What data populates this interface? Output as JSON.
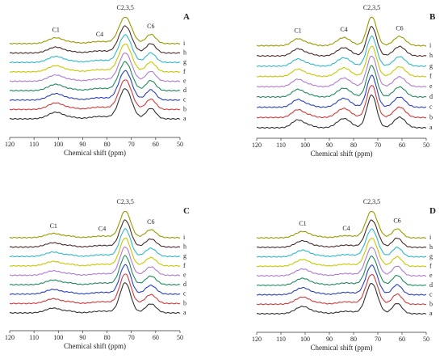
{
  "figure": {
    "colors": {
      "i": "#9a9a00",
      "h": "#4b2a2a",
      "g": "#30b8c8",
      "f": "#c8c800",
      "e": "#b07ad0",
      "d": "#1f8a5a",
      "c": "#2a3fc0",
      "b": "#d03a3a",
      "a": "#333333"
    }
  },
  "chart_data": [
    {
      "type": "line",
      "panel": "A",
      "xlabel": "Chemical shift (ppm)",
      "xlim": [
        120,
        50
      ],
      "x_reversed": true,
      "xticks": [
        "120",
        "110",
        "100",
        "90",
        "80",
        "70",
        "60",
        "50"
      ],
      "peak_labels": [
        {
          "text": "C1",
          "ppm": 101
        },
        {
          "text": "C4",
          "ppm": 83
        },
        {
          "text": "C2,3,5",
          "ppm": 72.5
        },
        {
          "text": "C6",
          "ppm": 62
        }
      ],
      "trace_labels": [
        "i",
        "h",
        "g",
        "f",
        "e",
        "d",
        "c",
        "b",
        "a"
      ],
      "peaks": [
        {
          "ppm": 101,
          "height": 0.22,
          "width": 3.2
        },
        {
          "ppm": 94,
          "height": 0.04,
          "width": 2.0
        },
        {
          "ppm": 83,
          "height": 0.08,
          "width": 4.0
        },
        {
          "ppm": 72.5,
          "height": 1.0,
          "width": 2.6
        },
        {
          "ppm": 62,
          "height": 0.35,
          "width": 2.0
        }
      ]
    },
    {
      "type": "line",
      "panel": "B",
      "xlabel": "Chemical shift (ppm)",
      "xlim": [
        120,
        50
      ],
      "x_reversed": true,
      "xticks": [
        "120",
        "110",
        "100",
        "90",
        "80",
        "70",
        "60",
        "50"
      ],
      "peak_labels": [
        {
          "text": "C1",
          "ppm": 103
        },
        {
          "text": "C4",
          "ppm": 84
        },
        {
          "text": "C2,3,5",
          "ppm": 72.5
        },
        {
          "text": "C6",
          "ppm": 61
        }
      ],
      "trace_labels": [
        "i",
        "h",
        "g",
        "f",
        "e",
        "d",
        "c",
        "b",
        "a"
      ],
      "peaks": [
        {
          "ppm": 103,
          "height": 0.24,
          "width": 2.4
        },
        {
          "ppm": 98,
          "height": 0.06,
          "width": 2.0
        },
        {
          "ppm": 84,
          "height": 0.28,
          "width": 2.8
        },
        {
          "ppm": 72.5,
          "height": 1.0,
          "width": 2.0
        },
        {
          "ppm": 61,
          "height": 0.32,
          "width": 2.4
        }
      ]
    },
    {
      "type": "line",
      "panel": "C",
      "xlabel": "Chemical shift (ppm)",
      "xlim": [
        120,
        50
      ],
      "x_reversed": true,
      "xticks": [
        "120",
        "110",
        "100",
        "90",
        "80",
        "70",
        "60",
        "50"
      ],
      "peak_labels": [
        {
          "text": "C1",
          "ppm": 102
        },
        {
          "text": "C4",
          "ppm": 82
        },
        {
          "text": "C2,3,5",
          "ppm": 72.5
        },
        {
          "text": "C6",
          "ppm": 62
        }
      ],
      "trace_labels": [
        "i",
        "h",
        "g",
        "f",
        "e",
        "d",
        "c",
        "b",
        "a"
      ],
      "peaks": [
        {
          "ppm": 102,
          "height": 0.16,
          "width": 3.2
        },
        {
          "ppm": 95,
          "height": 0.05,
          "width": 2.0
        },
        {
          "ppm": 82,
          "height": 0.06,
          "width": 4.0
        },
        {
          "ppm": 72.5,
          "height": 1.0,
          "width": 2.2
        },
        {
          "ppm": 62,
          "height": 0.3,
          "width": 2.2
        }
      ]
    },
    {
      "type": "line",
      "panel": "D",
      "xlabel": "Chemical shift (ppm)",
      "xlim": [
        120,
        50
      ],
      "x_reversed": true,
      "xticks": [
        "120",
        "110",
        "100",
        "90",
        "80",
        "70",
        "60",
        "50"
      ],
      "peak_labels": [
        {
          "text": "C1",
          "ppm": 101
        },
        {
          "text": "C4",
          "ppm": 83
        },
        {
          "text": "C2,3,5",
          "ppm": 72.5
        },
        {
          "text": "C6",
          "ppm": 62
        }
      ],
      "trace_labels": [
        "i",
        "h",
        "g",
        "f",
        "e",
        "d",
        "c",
        "b",
        "a"
      ],
      "peaks": [
        {
          "ppm": 101,
          "height": 0.24,
          "width": 3.0
        },
        {
          "ppm": 94,
          "height": 0.04,
          "width": 2.0
        },
        {
          "ppm": 83,
          "height": 0.08,
          "width": 3.6
        },
        {
          "ppm": 72.5,
          "height": 1.0,
          "width": 2.4
        },
        {
          "ppm": 62,
          "height": 0.34,
          "width": 2.0
        }
      ]
    }
  ]
}
